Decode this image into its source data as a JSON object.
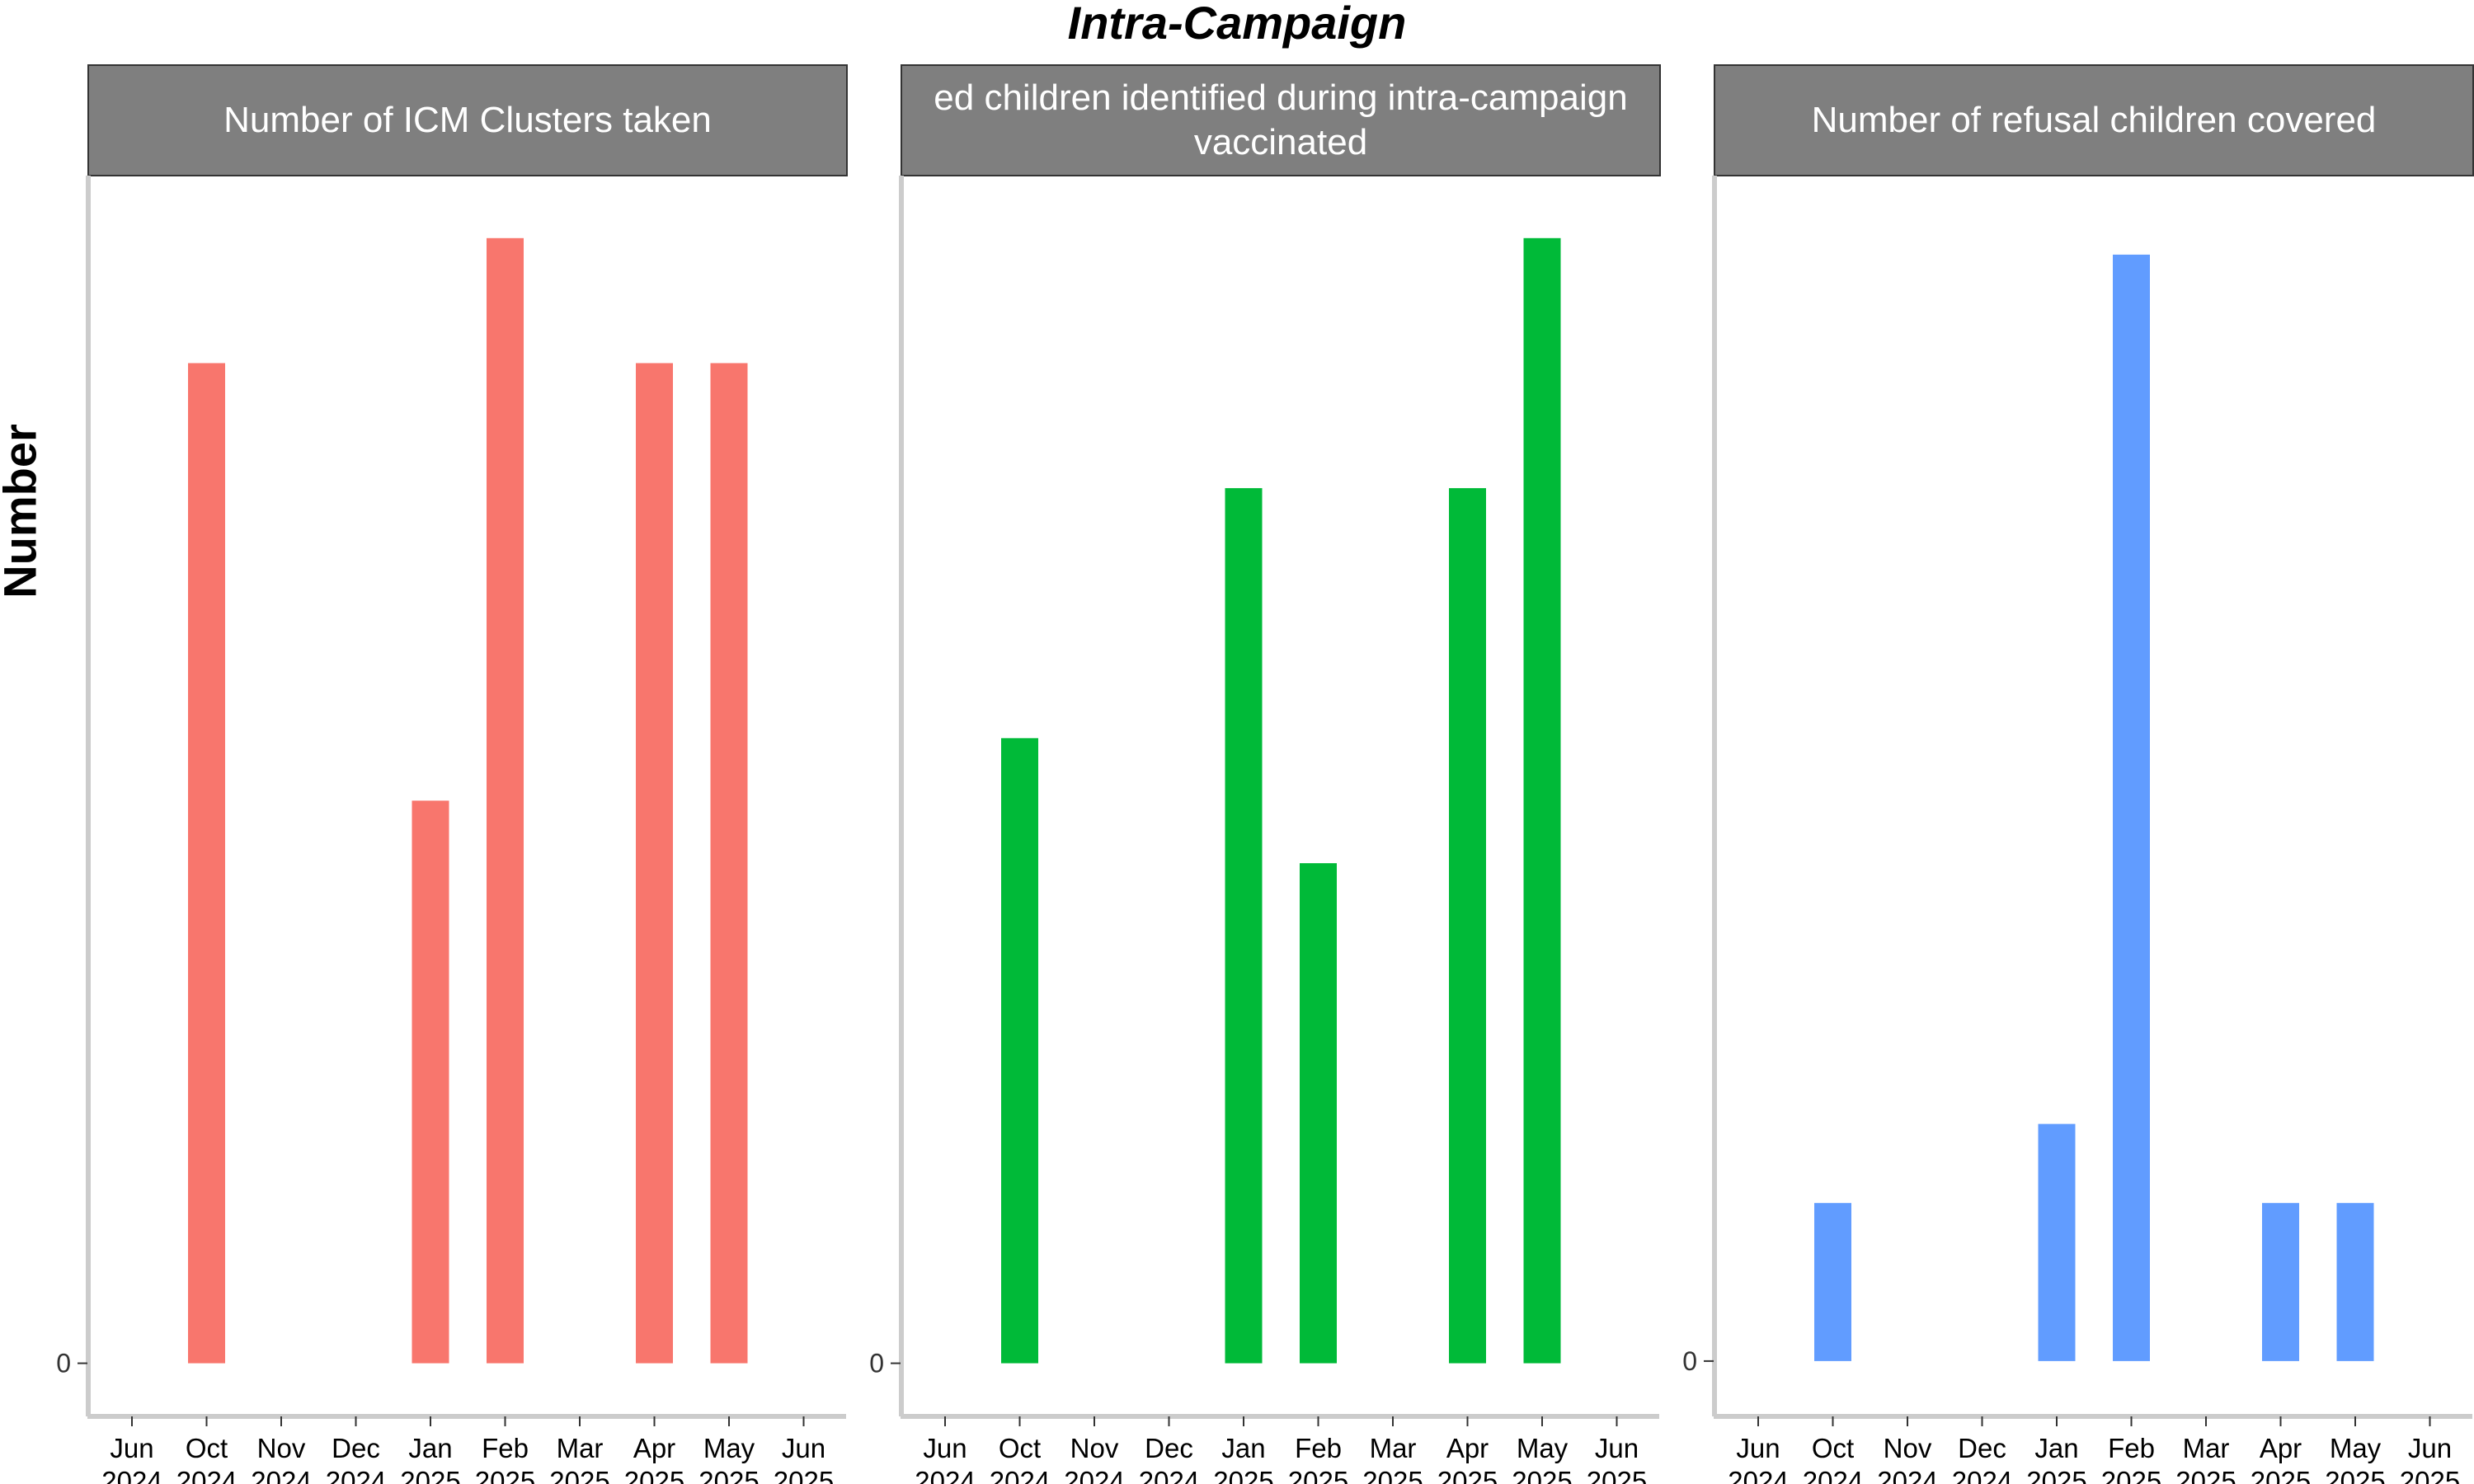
{
  "title": "Intra-Campaign",
  "ylabel": "Number",
  "x_tick_labels": [
    [
      "Jun",
      "2024"
    ],
    [
      "Oct",
      "2024"
    ],
    [
      "Nov",
      "2024"
    ],
    [
      "Dec",
      "2024"
    ],
    [
      "Jan",
      "2025"
    ],
    [
      "Feb",
      "2025"
    ],
    [
      "Mar",
      "2025"
    ],
    [
      "Apr",
      "2025"
    ],
    [
      "May",
      "2025"
    ],
    [
      "Jun",
      "2025"
    ]
  ],
  "colors": {
    "panel1": "#F8766D",
    "panel2": "#00BA38",
    "panel3": "#619CFF",
    "strip_bg": "#7F7F7F",
    "axis": "#CCCCCC"
  },
  "chart_data": [
    {
      "type": "bar",
      "panel_title": "Number of ICM Clusters taken",
      "categories": [
        "Oct 2024",
        "Jan 2025",
        "Feb 2025",
        "Apr 2025",
        "May 2025"
      ],
      "category_slots": [
        1,
        4,
        5,
        7,
        8
      ],
      "values": [
        16,
        9,
        18,
        16,
        16
      ],
      "ylim": [
        -0.85,
        19
      ],
      "y_ticks": [
        0
      ],
      "y_tick_labels": [
        "0"
      ],
      "grid": false
    },
    {
      "type": "bar",
      "panel_title": "ed children identified during intra-campaign\nvaccinated",
      "categories": [
        "Oct 2024",
        "Jan 2025",
        "Feb 2025",
        "Apr 2025",
        "May 2025"
      ],
      "category_slots": [
        1,
        4,
        5,
        7,
        8
      ],
      "values": [
        10,
        14,
        8,
        14,
        18
      ],
      "ylim": [
        -0.85,
        19
      ],
      "y_ticks": [
        0
      ],
      "y_tick_labels": [
        "0"
      ],
      "grid": false
    },
    {
      "type": "bar",
      "panel_title": "Number of refusal children covered",
      "categories": [
        "Oct 2024",
        "Jan 2025",
        "Feb 2025",
        "Apr 2025",
        "May 2025"
      ],
      "category_slots": [
        1,
        4,
        5,
        7,
        8
      ],
      "values": [
        2,
        3,
        14,
        2,
        2
      ],
      "ylim": [
        -0.7,
        15
      ],
      "y_ticks": [
        0
      ],
      "y_tick_labels": [
        "0"
      ],
      "grid": false
    }
  ]
}
